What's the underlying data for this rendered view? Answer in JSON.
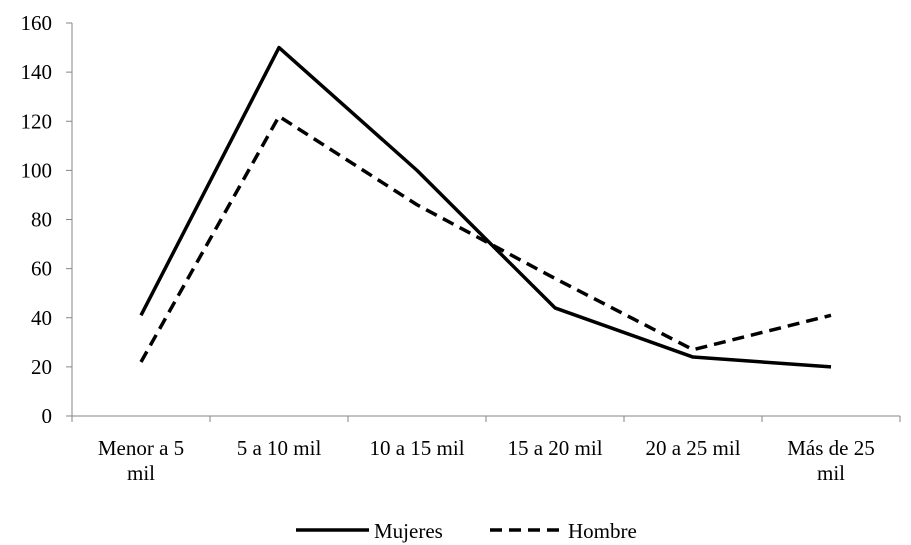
{
  "chart_data": {
    "type": "line",
    "title": "",
    "xlabel": "",
    "ylabel": "",
    "categories": [
      [
        "Menor a 5",
        "mil"
      ],
      [
        "5 a 10 mil"
      ],
      [
        "10 a 15 mil"
      ],
      [
        "15 a 20 mil"
      ],
      [
        "20 a 25 mil"
      ],
      [
        "Más de 25",
        "mil"
      ]
    ],
    "ylim": [
      0,
      160
    ],
    "yticks": [
      0,
      20,
      40,
      60,
      80,
      100,
      120,
      140,
      160
    ],
    "grid": false,
    "legend_position": "bottom",
    "series": [
      {
        "name": "Mujeres",
        "values": [
          41,
          150,
          100,
          44,
          24,
          20
        ],
        "color": "#000000",
        "dash": "solid"
      },
      {
        "name": "Hombre",
        "values": [
          22,
          122,
          86,
          56,
          27,
          41
        ],
        "color": "#000000",
        "dash": "dashed"
      }
    ]
  }
}
